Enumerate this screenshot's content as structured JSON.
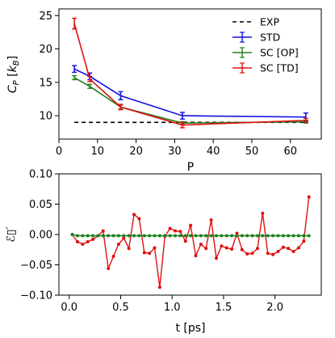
{
  "chart_data": [
    {
      "type": "line",
      "xlabel": "P",
      "ylabel": "C_P [k_B]",
      "xlim": [
        0,
        68
      ],
      "ylim": [
        6.5,
        26
      ],
      "xticks": [
        0,
        10,
        20,
        30,
        40,
        50,
        60
      ],
      "yticks": [
        10,
        15,
        20,
        25
      ],
      "xtick_labels": [
        "0",
        "10",
        "20",
        "30",
        "40",
        "50",
        "60"
      ],
      "ytick_labels": [
        "10",
        "15",
        "20",
        "25"
      ],
      "legend_position": "top-right",
      "series": [
        {
          "name": "EXP",
          "color": "#000000",
          "style": "dashed",
          "x": [
            4,
            64
          ],
          "y": [
            9.0,
            9.0
          ]
        },
        {
          "name": "STD",
          "color": "#1010e0",
          "style": "errorbar",
          "x": [
            4,
            8,
            16,
            32,
            64
          ],
          "y": [
            17.0,
            15.9,
            13.0,
            10.0,
            9.8
          ],
          "err": [
            0.5,
            0.5,
            0.6,
            0.5,
            0.6
          ]
        },
        {
          "name": "SC [OP]",
          "color": "#208020",
          "style": "errorbar",
          "x": [
            4,
            8,
            16,
            32,
            64
          ],
          "y": [
            15.7,
            14.4,
            11.3,
            8.9,
            9.1
          ],
          "err": [
            0.3,
            0.3,
            0.3,
            0.2,
            0.2
          ]
        },
        {
          "name": "SC [TD]",
          "color": "#e01010",
          "style": "errorbar",
          "x": [
            4,
            8,
            16,
            32,
            64
          ],
          "y": [
            23.8,
            15.5,
            11.3,
            8.6,
            9.3
          ],
          "err": [
            0.8,
            0.4,
            0.4,
            0.4,
            0.3
          ]
        }
      ]
    },
    {
      "type": "line",
      "xlabel": "t [ps]",
      "ylabel": "ℰ▯′",
      "xlim": [
        -0.1,
        2.45
      ],
      "ylim": [
        -0.1,
        0.1
      ],
      "xticks": [
        0.0,
        0.5,
        1.0,
        1.5,
        2.0
      ],
      "yticks": [
        -0.1,
        -0.05,
        0.0,
        0.05,
        0.1
      ],
      "xtick_labels": [
        "0.0",
        "0.5",
        "1.0",
        "1.5",
        "2.0"
      ],
      "ytick_labels": [
        "−0.10",
        "−0.05",
        "0.00",
        "0.05",
        "0.10"
      ],
      "series": [
        {
          "color": "#e01010",
          "x": [
            0.03,
            0.08,
            0.13,
            0.18,
            0.23,
            0.28,
            0.33,
            0.38,
            0.43,
            0.48,
            0.53,
            0.58,
            0.63,
            0.68,
            0.73,
            0.78,
            0.83,
            0.88,
            0.93,
            0.98,
            1.03,
            1.08,
            1.13,
            1.18,
            1.23,
            1.28,
            1.33,
            1.38,
            1.43,
            1.48,
            1.53,
            1.58,
            1.63,
            1.68,
            1.73,
            1.78,
            1.83,
            1.88,
            1.93,
            1.98,
            2.03,
            2.08,
            2.13,
            2.18,
            2.23,
            2.28,
            2.33
          ],
          "y": [
            0.0,
            -0.012,
            -0.016,
            -0.012,
            -0.008,
            -0.002,
            0.006,
            -0.056,
            -0.036,
            -0.016,
            -0.006,
            -0.023,
            0.033,
            0.026,
            -0.03,
            -0.031,
            -0.022,
            -0.087,
            -0.003,
            0.01,
            0.006,
            0.005,
            -0.011,
            0.015,
            -0.035,
            -0.016,
            -0.023,
            0.024,
            -0.039,
            -0.019,
            -0.022,
            -0.024,
            0.002,
            -0.025,
            -0.032,
            -0.031,
            -0.023,
            0.035,
            -0.031,
            -0.033,
            -0.028,
            -0.021,
            -0.023,
            -0.028,
            -0.022,
            -0.011,
            0.062
          ]
        },
        {
          "color": "#208020",
          "x": [
            0.03,
            0.08,
            0.13,
            0.18,
            0.23,
            0.28,
            0.33,
            0.38,
            0.43,
            0.48,
            0.53,
            0.58,
            0.63,
            0.68,
            0.73,
            0.78,
            0.83,
            0.88,
            0.93,
            0.98,
            1.03,
            1.08,
            1.13,
            1.18,
            1.23,
            1.28,
            1.33,
            1.38,
            1.43,
            1.48,
            1.53,
            1.58,
            1.63,
            1.68,
            1.73,
            1.78,
            1.83,
            1.88,
            1.93,
            1.98,
            2.03,
            2.08,
            2.13,
            2.18,
            2.23,
            2.28,
            2.33
          ],
          "y": [
            0.0,
            -0.002,
            -0.002,
            -0.002,
            -0.002,
            -0.002,
            -0.002,
            -0.002,
            -0.002,
            -0.002,
            -0.002,
            -0.002,
            -0.002,
            -0.002,
            -0.002,
            -0.002,
            -0.002,
            -0.002,
            -0.002,
            -0.002,
            -0.002,
            -0.002,
            -0.002,
            -0.002,
            -0.002,
            -0.002,
            -0.002,
            -0.002,
            -0.002,
            -0.002,
            -0.002,
            -0.002,
            -0.002,
            -0.002,
            -0.002,
            -0.002,
            -0.002,
            -0.002,
            -0.002,
            -0.002,
            -0.002,
            -0.002,
            -0.002,
            -0.002,
            -0.002,
            -0.002,
            -0.002
          ]
        }
      ]
    }
  ]
}
